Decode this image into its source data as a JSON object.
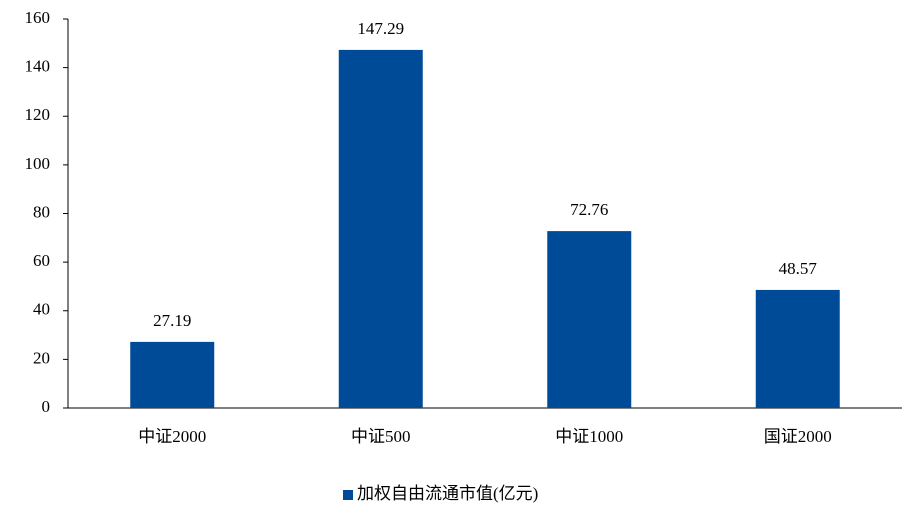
{
  "chart_data": {
    "type": "bar",
    "categories": [
      "中证2000",
      "中证500",
      "中证1000",
      "国证2000"
    ],
    "series": [
      {
        "name": "加权自由流通市值(亿元)",
        "color": "#004b97",
        "values": [
          27.19,
          147.29,
          72.76,
          48.57
        ]
      }
    ],
    "ylim": [
      0,
      160
    ],
    "yticks": [
      0,
      20,
      40,
      60,
      80,
      100,
      120,
      140,
      160
    ],
    "grid": false,
    "legend": "bottom"
  }
}
